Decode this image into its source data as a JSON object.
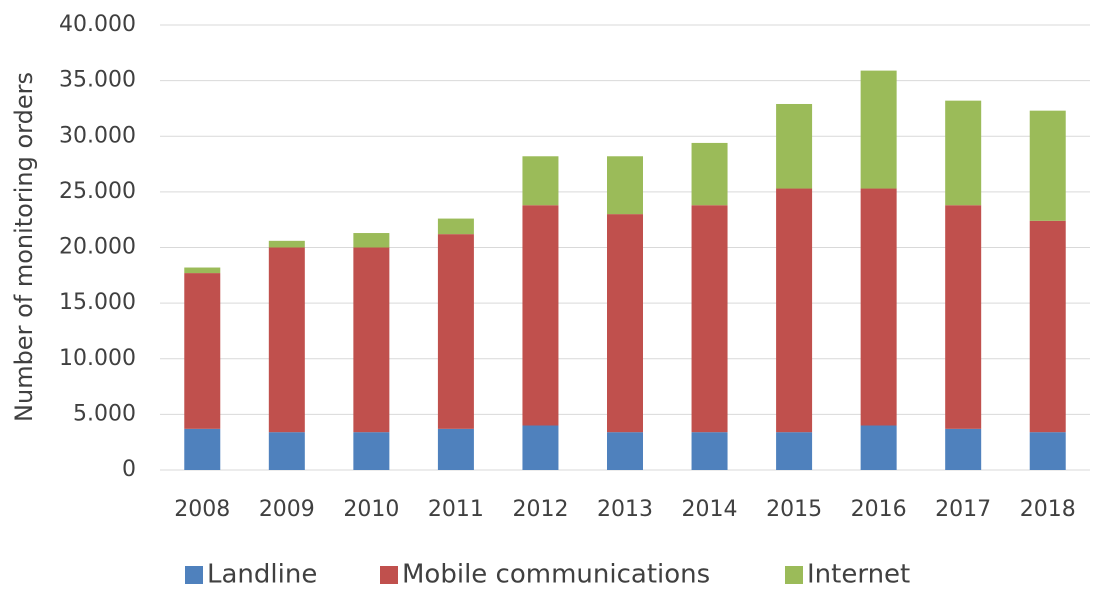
{
  "chart_data": {
    "type": "stacked_bar",
    "ylabel": "Number of monitoring orders",
    "categories": [
      "2008",
      "2009",
      "2010",
      "2011",
      "2012",
      "2013",
      "2014",
      "2015",
      "2016",
      "2017",
      "2018"
    ],
    "series": [
      {
        "name": "Landline",
        "color": "#4f81bd",
        "values": [
          3700,
          3400,
          3400,
          3700,
          4000,
          3400,
          3400,
          3400,
          4000,
          3700,
          3400
        ]
      },
      {
        "name": "Mobile communications",
        "color": "#c0504d",
        "values": [
          14000,
          16600,
          16600,
          17500,
          19800,
          19600,
          20400,
          21900,
          21300,
          20100,
          19000
        ]
      },
      {
        "name": "Internet",
        "color": "#9bbb59",
        "values": [
          500,
          600,
          1300,
          1400,
          4400,
          5200,
          5600,
          7600,
          10600,
          9400,
          9900
        ]
      }
    ],
    "ylim": [
      0,
      40000
    ],
    "yticks": [
      0,
      {
        "value": 5000,
        "label": "5.000"
      },
      {
        "value": 10000,
        "label": "10.000"
      },
      {
        "value": 15000,
        "label": "15.000"
      },
      {
        "value": 20000,
        "label": "20.000"
      },
      {
        "value": 25000,
        "label": "25.000"
      },
      {
        "value": 30000,
        "label": "30.000"
      },
      {
        "value": 35000,
        "label": "35.000"
      },
      {
        "value": 40000,
        "label": "40.000"
      }
    ],
    "grid": true,
    "legend": "bottom"
  }
}
